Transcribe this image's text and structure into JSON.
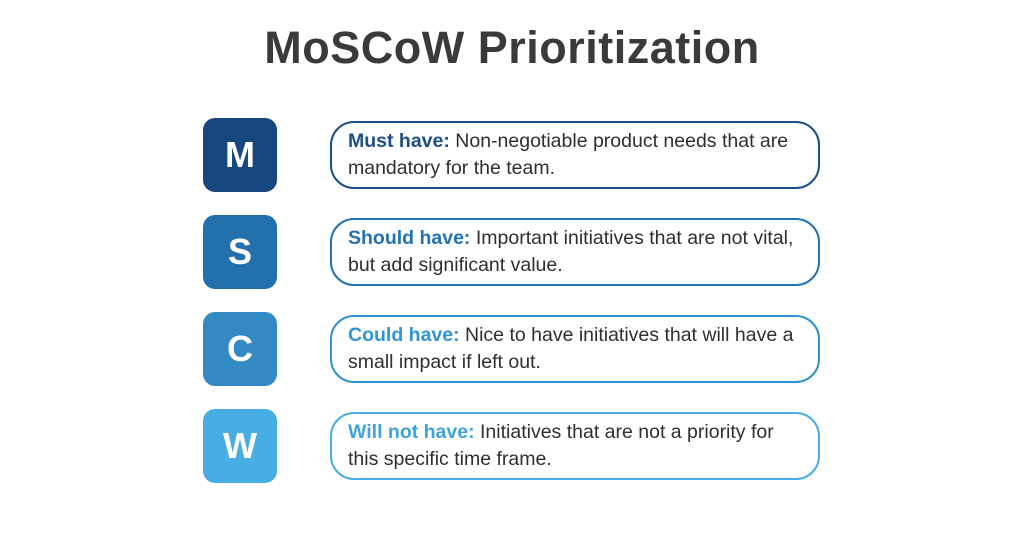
{
  "title": "MoSCoW Prioritization",
  "rows": [
    {
      "letter": "M",
      "label": "Must have:",
      "description": "Non-negotiable product needs that are mandatory for the team.",
      "tile_color": "#16477e",
      "border_color": "#1c4e87",
      "label_color": "#1c4e87"
    },
    {
      "letter": "S",
      "label": "Should have:",
      "description": "Important initiatives that are not vital, but add significant value.",
      "tile_color": "#2271ad",
      "border_color": "#2373b2",
      "label_color": "#2173b4"
    },
    {
      "letter": "C",
      "label": "Could have:",
      "description": "Nice to have initiatives that will have a small impact if left out.",
      "tile_color": "#338ac3",
      "border_color": "#2f92cf",
      "label_color": "#2e96d6"
    },
    {
      "letter": "W",
      "label": "Will not have:",
      "description": "Initiatives that are not a priority for this specific time frame.",
      "tile_color": "#47ade3",
      "border_color": "#47ade3",
      "label_color": "#3fa3dd"
    }
  ],
  "colors": {
    "title": "#3a3a3a",
    "body_text": "#2f2f2f",
    "background": "#ffffff"
  }
}
